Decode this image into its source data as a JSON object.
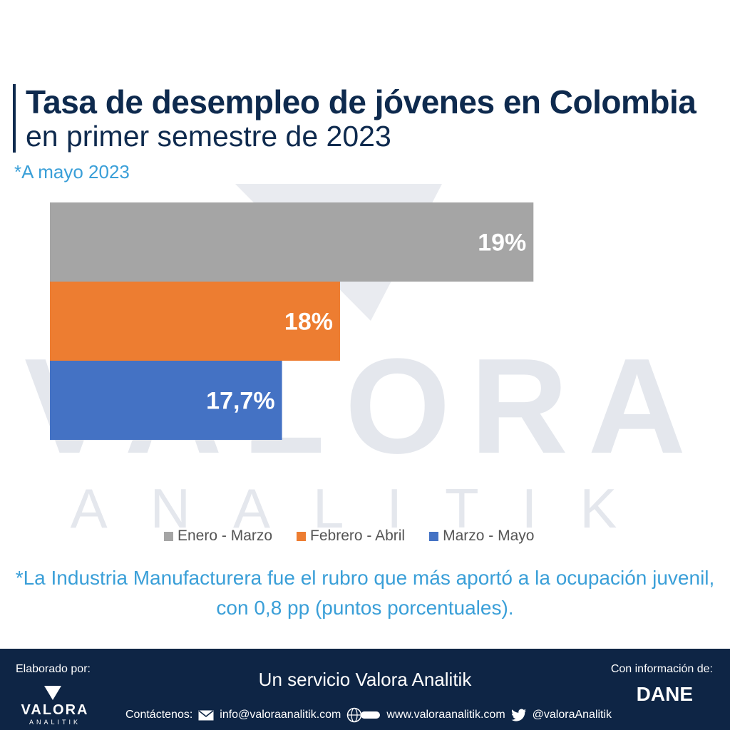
{
  "title": "Tasa de desempleo de jóvenes en Colombia",
  "subtitle": "en primer semestre de 2023",
  "note": "*A mayo 2023",
  "chart_data": {
    "type": "bar",
    "orientation": "horizontal",
    "categories": [
      "Enero - Marzo",
      "Febrero - Abril",
      "Marzo - Mayo"
    ],
    "values": [
      19,
      18,
      17.7
    ],
    "value_labels": [
      "19%",
      "18%",
      "17,7%"
    ],
    "colors": [
      "#a5a5a5",
      "#ed7d31",
      "#4472c4"
    ],
    "unit": "%",
    "legend_position": "bottom"
  },
  "footnote": "*La Industria Manufacturera fue el rubro que más aportó a la ocupación juvenil, con 0,8 pp (puntos porcentuales).",
  "watermark": {
    "line1": "VALORA",
    "line2": "ANALITIK"
  },
  "footer": {
    "elaborated_by": "Elaborado por:",
    "logo_name": "VALORA",
    "logo_sub": "ANALITIK",
    "service": "Un servicio Valora Analitik",
    "info_label": "Con información de:",
    "source": "DANE",
    "contacts_label": "Contáctenos:",
    "email": "info@valoraanalitik.com",
    "website": "www.valoraanalitik.com",
    "twitter": "@valoraAnalitik"
  }
}
